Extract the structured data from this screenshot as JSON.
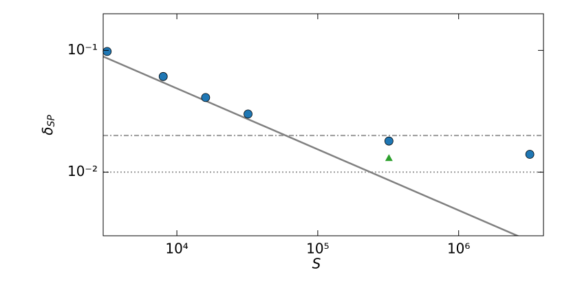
{
  "chart_data": {
    "type": "scatter",
    "x_label": "S",
    "y_label": "δ",
    "y_label_subscript": "SP",
    "log_x": true,
    "log_y": true,
    "xlim": [
      3000,
      4000000
    ],
    "ylim": [
      0.003,
      0.2
    ],
    "xticks": [
      {
        "value": 10000,
        "label": "10⁴"
      },
      {
        "value": 100000,
        "label": "10⁵"
      },
      {
        "value": 1000000,
        "label": "10⁶"
      }
    ],
    "yticks": [
      {
        "value": 0.01,
        "label": "10⁻²"
      },
      {
        "value": 0.1,
        "label": "10⁻¹"
      }
    ],
    "series": [
      {
        "marker": "circle",
        "color": "#1f77b4",
        "x": [
          3200,
          8000,
          16000,
          32000,
          320000,
          3200000
        ],
        "values": [
          0.098,
          0.061,
          0.041,
          0.03,
          0.018,
          0.014
        ]
      },
      {
        "marker": "triangle",
        "color": "#2ca02c",
        "x": [
          320000
        ],
        "values": [
          0.013
        ]
      }
    ],
    "lines": [
      {
        "style": "solid",
        "color": "#808080",
        "x": [
          3000,
          3000000
        ],
        "values": [
          0.089,
          0.0028
        ]
      }
    ],
    "hlines": [
      {
        "style": "dashdot",
        "color": "#999999",
        "value": 0.02
      },
      {
        "style": "dotted",
        "color": "#999999",
        "value": 0.01
      }
    ]
  }
}
